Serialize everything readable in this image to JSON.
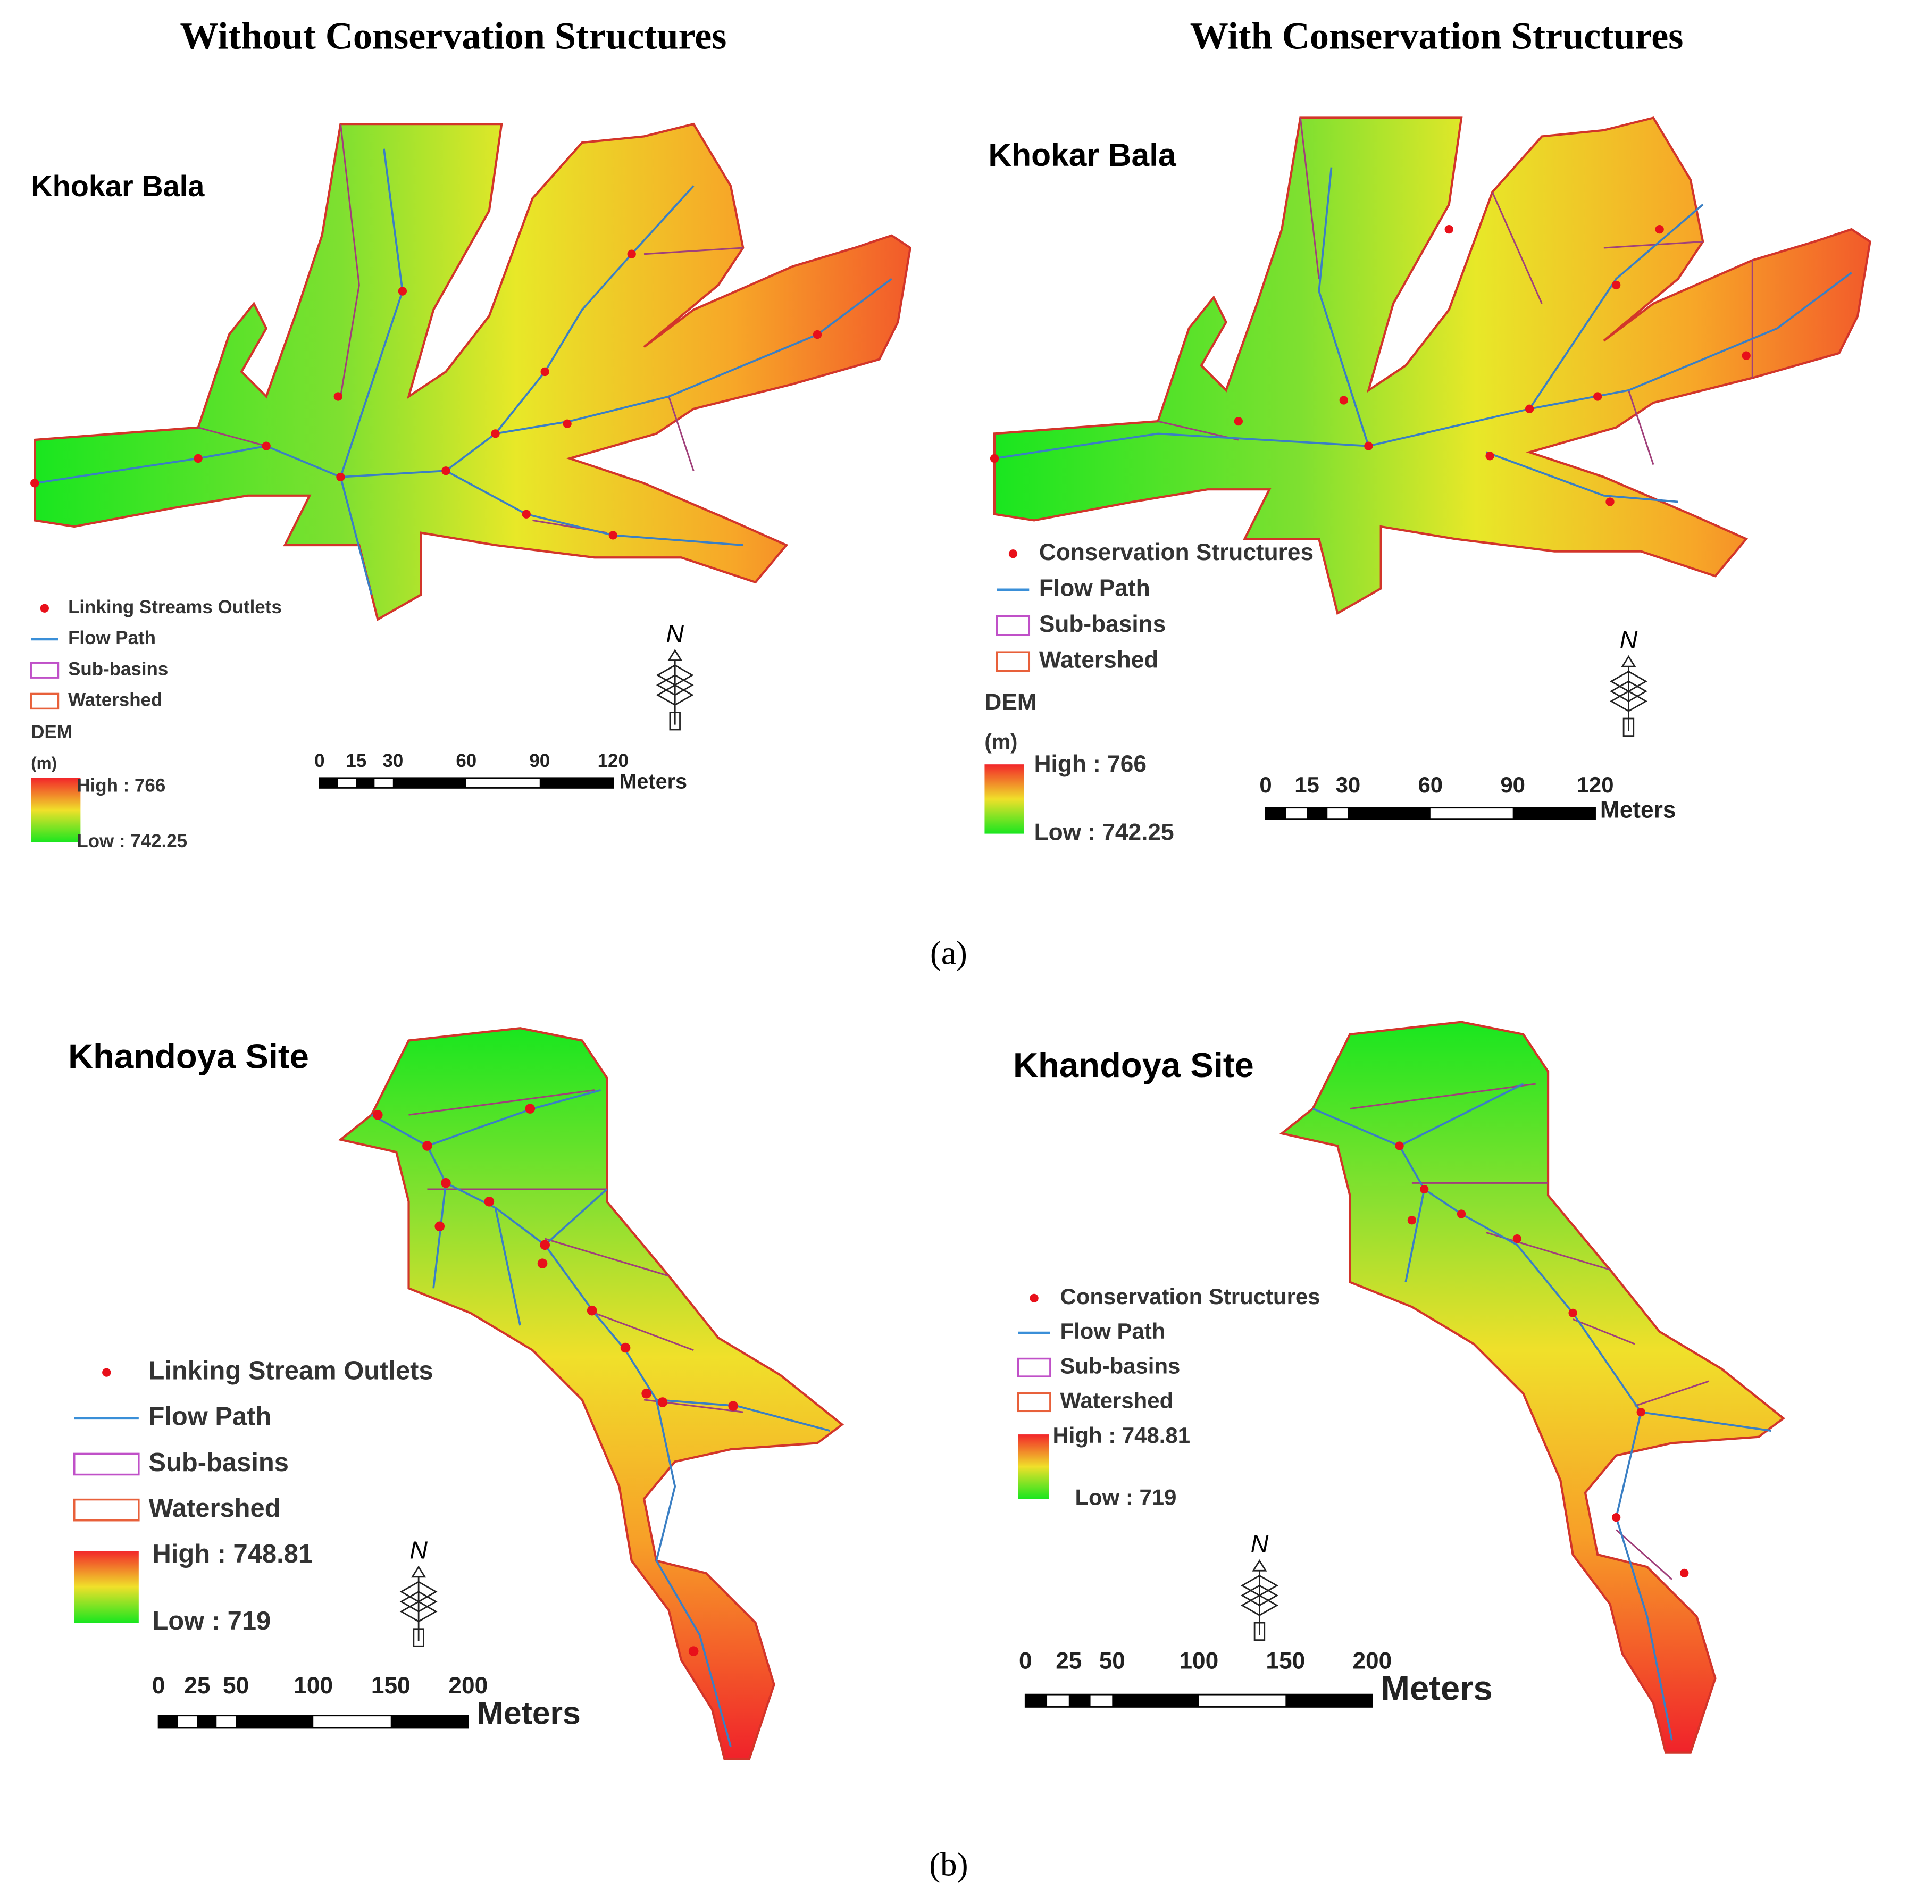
{
  "column_headers": [
    "Without Conservation Structures",
    "With Conservation Structures"
  ],
  "panels": [
    {
      "title": "Khokar Bala",
      "legend": [
        "Linking Streams Outlets",
        "Flow Path",
        "Sub-basins",
        "Watershed"
      ],
      "dem_label": "DEM",
      "dem_unit": "(m)",
      "high": "High : 766",
      "low": "Low : 742.25",
      "scale_ticks": [
        0,
        15,
        30,
        60,
        90,
        120
      ],
      "scale_unit": "Meters"
    },
    {
      "title": "Khokar Bala",
      "legend": [
        "Conservation Structures",
        "Flow Path",
        "Sub-basins",
        "Watershed"
      ],
      "dem_label": "DEM",
      "dem_unit": "(m)",
      "high": "High : 766",
      "low": "Low : 742.25",
      "scale_ticks": [
        0,
        15,
        30,
        60,
        90,
        120
      ],
      "scale_unit": "Meters"
    },
    {
      "title": "Khandoya Site",
      "legend": [
        "Linking Stream Outlets",
        "Flow Path",
        "Sub-basins",
        "Watershed"
      ],
      "high": "High : 748.81",
      "low": "Low : 719",
      "scale_ticks": [
        0,
        25,
        50,
        100,
        150,
        200
      ],
      "scale_unit": "Meters"
    },
    {
      "title": "Khandoya Site",
      "legend": [
        "Conservation Structures",
        "Flow Path",
        "Sub-basins",
        "Watershed"
      ],
      "high": "High : 748.81",
      "low": "Low : 719",
      "scale_ticks": [
        0,
        25,
        50,
        100,
        150,
        200
      ],
      "scale_unit": "Meters"
    }
  ],
  "north_label": "N",
  "captions": [
    "(a)",
    "(b)"
  ]
}
